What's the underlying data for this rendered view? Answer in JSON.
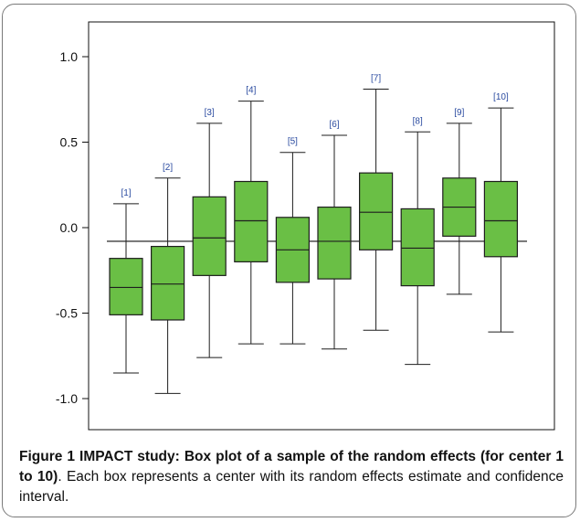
{
  "colors": {
    "box_fill": "#6abf45",
    "box_stroke": "#1e1e1e",
    "label_color": "#2b4ba0",
    "axis_color": "#111111"
  },
  "chart_data": {
    "type": "boxplot",
    "title": "",
    "xlabel": "",
    "ylabel": "",
    "ylim": [
      -1.1,
      1.1
    ],
    "yticks": [
      "1.0",
      "0.5",
      "0.0",
      "-0.5",
      "-1.0"
    ],
    "ytick_values": [
      1.0,
      0.5,
      0.0,
      -0.5,
      -1.0
    ],
    "reference_line": -0.08,
    "grid": false,
    "categories": [
      "[1]",
      "[2]",
      "[3]",
      "[4]",
      "[5]",
      "[6]",
      "[7]",
      "[8]",
      "[9]",
      "[10]"
    ],
    "boxes": [
      {
        "label": "[1]",
        "whisker_low": -0.85,
        "q1": -0.51,
        "median": -0.35,
        "q3": -0.18,
        "whisker_high": 0.14
      },
      {
        "label": "[2]",
        "whisker_low": -0.97,
        "q1": -0.54,
        "median": -0.33,
        "q3": -0.11,
        "whisker_high": 0.29
      },
      {
        "label": "[3]",
        "whisker_low": -0.76,
        "q1": -0.28,
        "median": -0.06,
        "q3": 0.18,
        "whisker_high": 0.61
      },
      {
        "label": "[4]",
        "whisker_low": -0.68,
        "q1": -0.2,
        "median": 0.04,
        "q3": 0.27,
        "whisker_high": 0.74
      },
      {
        "label": "[5]",
        "whisker_low": -0.68,
        "q1": -0.32,
        "median": -0.13,
        "q3": 0.06,
        "whisker_high": 0.44
      },
      {
        "label": "[6]",
        "whisker_low": -0.71,
        "q1": -0.3,
        "median": -0.08,
        "q3": 0.12,
        "whisker_high": 0.54
      },
      {
        "label": "[7]",
        "whisker_low": -0.6,
        "q1": -0.13,
        "median": 0.09,
        "q3": 0.32,
        "whisker_high": 0.81
      },
      {
        "label": "[8]",
        "whisker_low": -0.8,
        "q1": -0.34,
        "median": -0.12,
        "q3": 0.11,
        "whisker_high": 0.56
      },
      {
        "label": "[9]",
        "whisker_low": -0.39,
        "q1": -0.05,
        "median": 0.12,
        "q3": 0.29,
        "whisker_high": 0.61
      },
      {
        "label": "[10]",
        "whisker_low": -0.61,
        "q1": -0.17,
        "median": 0.04,
        "q3": 0.27,
        "whisker_high": 0.7
      }
    ]
  },
  "caption": {
    "figure_label": "Figure 1",
    "title": "IMPACT study: Box plot of a sample of the random effects (for center 1 to 10)",
    "body": ". Each box represents a center with its random effects estimate and confidence interval."
  }
}
